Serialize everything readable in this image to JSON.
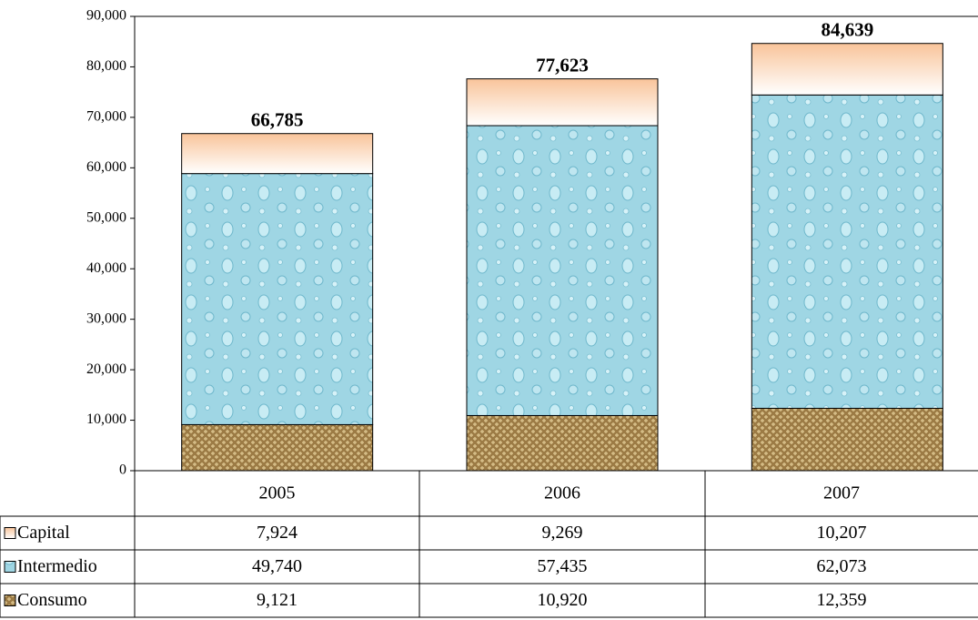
{
  "chart_data": {
    "type": "stacked_bar",
    "categories": [
      "2005",
      "2006",
      "2007"
    ],
    "series": [
      {
        "name": "Capital",
        "color": "#f9c49a",
        "values": [
          7924,
          9269,
          10207
        ],
        "value_labels": [
          "7,924",
          "9,269",
          "10,207"
        ]
      },
      {
        "name": "Intermedio",
        "color": "#9fd6e4",
        "values": [
          49740,
          57435,
          62073
        ],
        "value_labels": [
          "49,740",
          "57,435",
          "62,073"
        ]
      },
      {
        "name": "Consumo",
        "color": "#9c7b45",
        "values": [
          9121,
          10920,
          12359
        ],
        "value_labels": [
          "9,121",
          "10,920",
          "12,359"
        ]
      }
    ],
    "totals": {
      "values": [
        66785,
        77623,
        84639
      ],
      "value_labels": [
        "66,785",
        "77,623",
        "84,639"
      ]
    },
    "ylim": [
      0,
      90000
    ],
    "yticks": [
      0,
      {
        "value": 10000,
        "label": "10,000"
      },
      {
        "value": 20000,
        "label": "20,000"
      },
      {
        "value": 30000,
        "label": "30,000"
      },
      {
        "value": 40000,
        "label": "40,000"
      },
      {
        "value": 50000,
        "label": "50,000"
      },
      {
        "value": 60000,
        "label": "60,000"
      },
      {
        "value": 70000,
        "label": "70,000"
      },
      {
        "value": 80000,
        "label": "80,000"
      },
      {
        "value": 90000,
        "label": "90,000"
      }
    ],
    "data_table": true
  }
}
